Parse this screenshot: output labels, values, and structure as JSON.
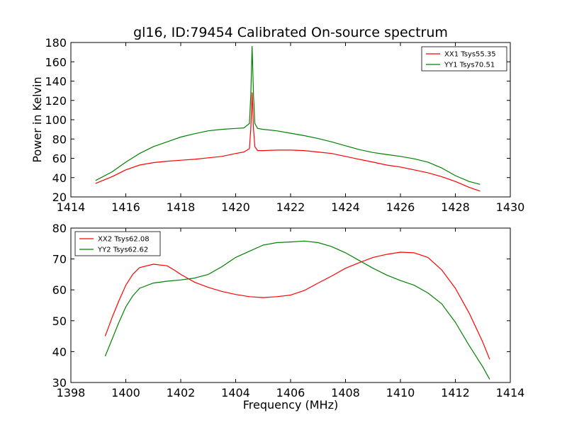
{
  "page": {
    "title": "gl16, ID:79454 Calibrated On-source spectrum"
  },
  "chart_data": [
    {
      "type": "line",
      "title": "gl16, ID:79454 Calibrated On-source spectrum",
      "xlabel": "",
      "ylabel": "Power in Kelvin",
      "xlim": [
        1414,
        1430
      ],
      "ylim": [
        20,
        180
      ],
      "xticks": [
        "1414",
        "1416",
        "1418",
        "1420",
        "1422",
        "1424",
        "1426",
        "1428",
        "1430"
      ],
      "yticks": [
        "20",
        "40",
        "60",
        "80",
        "100",
        "120",
        "140",
        "160",
        "180"
      ],
      "legend_position": "top-right",
      "series": [
        {
          "name": "XX1 Tsys55.35",
          "color": "#ff0000",
          "x": [
            1414.9,
            1415.5,
            1416.0,
            1416.5,
            1417.0,
            1417.5,
            1418.0,
            1418.5,
            1419.0,
            1419.5,
            1420.0,
            1420.3,
            1420.5,
            1420.55,
            1420.6,
            1420.65,
            1420.7,
            1420.8,
            1421.0,
            1421.5,
            1422.0,
            1422.5,
            1423.0,
            1423.5,
            1424.0,
            1424.5,
            1425.0,
            1425.5,
            1426.0,
            1426.5,
            1427.0,
            1427.5,
            1428.0,
            1428.5,
            1428.9
          ],
          "y": [
            34,
            41,
            48,
            53,
            55.5,
            57,
            58,
            59,
            60.5,
            62,
            65,
            66.5,
            70,
            90,
            128,
            90,
            72,
            68,
            68,
            68.5,
            68.5,
            68,
            66.5,
            65,
            62,
            59,
            56,
            53,
            51,
            48,
            45,
            41,
            36,
            30,
            26
          ]
        },
        {
          "name": "YY1 Tsys70.51",
          "color": "#008000",
          "x": [
            1414.9,
            1415.5,
            1416.0,
            1416.5,
            1417.0,
            1417.5,
            1418.0,
            1418.5,
            1419.0,
            1419.5,
            1420.0,
            1420.3,
            1420.5,
            1420.55,
            1420.6,
            1420.65,
            1420.7,
            1420.8,
            1421.0,
            1421.5,
            1422.0,
            1422.5,
            1423.0,
            1423.5,
            1424.0,
            1424.5,
            1425.0,
            1425.5,
            1426.0,
            1426.5,
            1427.0,
            1427.5,
            1428.0,
            1428.5,
            1428.9
          ],
          "y": [
            37,
            46,
            56,
            65,
            72,
            77,
            82,
            85.5,
            88.5,
            90,
            91,
            91.5,
            96,
            125,
            176,
            125,
            96,
            91,
            90,
            88.5,
            86,
            83.5,
            80.5,
            77,
            73,
            69,
            66,
            64,
            62,
            59.5,
            56,
            50,
            42,
            36,
            33
          ]
        }
      ]
    },
    {
      "type": "line",
      "title": "",
      "xlabel": "Frequency (MHz)",
      "ylabel": "",
      "xlim": [
        1398,
        1414
      ],
      "ylim": [
        30,
        80
      ],
      "xticks": [
        "1398",
        "1400",
        "1402",
        "1404",
        "1406",
        "1408",
        "1410",
        "1412",
        "1414"
      ],
      "yticks": [
        "30",
        "40",
        "50",
        "60",
        "70",
        "80"
      ],
      "legend_position": "top-left",
      "series": [
        {
          "name": "XX2 Tsys62.08",
          "color": "#ff0000",
          "x": [
            1399.25,
            1399.5,
            1399.75,
            1400.0,
            1400.25,
            1400.5,
            1401.0,
            1401.5,
            1401.75,
            1402.0,
            1402.5,
            1403.0,
            1403.5,
            1404.0,
            1404.5,
            1405.0,
            1405.5,
            1406.0,
            1406.5,
            1407.0,
            1407.5,
            1408.0,
            1408.5,
            1409.0,
            1409.5,
            1410.0,
            1410.5,
            1411.0,
            1411.5,
            1412.0,
            1412.5,
            1413.0,
            1413.25
          ],
          "y": [
            45,
            51,
            56.5,
            61.5,
            65,
            67.2,
            68.3,
            67.8,
            66.5,
            65,
            62.5,
            60.8,
            59.5,
            58.5,
            57.8,
            57.5,
            57.8,
            58.3,
            59.8,
            62.2,
            64.5,
            67,
            68.8,
            70.5,
            71.5,
            72.2,
            72,
            70.5,
            66.5,
            60.5,
            52.5,
            43,
            37.5
          ]
        },
        {
          "name": "YY2 Tsys62.62",
          "color": "#008000",
          "x": [
            1399.25,
            1399.5,
            1399.75,
            1400.0,
            1400.25,
            1400.5,
            1401.0,
            1401.5,
            1402.0,
            1402.5,
            1403.0,
            1403.5,
            1404.0,
            1404.5,
            1405.0,
            1405.5,
            1406.0,
            1406.5,
            1407.0,
            1407.5,
            1408.0,
            1408.5,
            1409.0,
            1409.5,
            1410.0,
            1410.5,
            1411.0,
            1411.5,
            1412.0,
            1412.5,
            1413.0,
            1413.25
          ],
          "y": [
            38.5,
            44,
            49.5,
            54.5,
            58,
            60.5,
            62.2,
            62.8,
            63.2,
            63.8,
            65,
            67.5,
            70.5,
            72.5,
            74.5,
            75.3,
            75.5,
            75.8,
            75.3,
            74,
            72,
            69.5,
            67,
            64.8,
            63,
            61.5,
            59,
            55.5,
            49.5,
            42,
            35,
            31
          ]
        }
      ]
    }
  ]
}
